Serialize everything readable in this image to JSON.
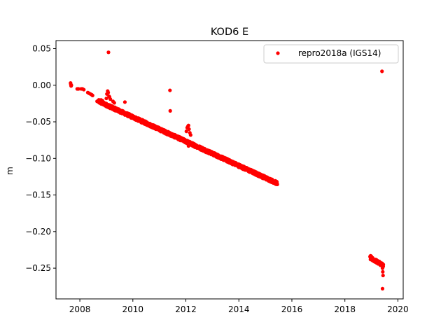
{
  "chart_data": {
    "type": "scatter",
    "title": "KOD6 E",
    "xlabel": "",
    "ylabel": "m",
    "xlim": [
      2007.1,
      2020.2
    ],
    "ylim": [
      -0.292,
      0.061
    ],
    "x_ticks": [
      2008,
      2010,
      2012,
      2014,
      2016,
      2018,
      2020
    ],
    "x_tick_labels": [
      "2008",
      "2010",
      "2012",
      "2014",
      "2016",
      "2018",
      "2020"
    ],
    "y_ticks": [
      0.05,
      0.0,
      -0.05,
      -0.1,
      -0.15,
      -0.2,
      -0.25
    ],
    "y_tick_labels": [
      "0.05",
      "0.00",
      "−0.05",
      "−0.10",
      "−0.15",
      "−0.20",
      "−0.25"
    ],
    "grid": false,
    "legend_position": "top-right",
    "colors": {
      "series": "#ff0000",
      "axes": "#000000"
    },
    "series": [
      {
        "name": "repro2018a (IGS14)",
        "marker": "circle",
        "trend_segments": [
          {
            "x": [
              2008.7,
              2015.45
            ],
            "y": [
              -0.022,
              -0.134
            ],
            "count": 1300,
            "noise": 0.0022
          },
          {
            "x": [
              2018.95,
              2019.45
            ],
            "y": [
              -0.236,
              -0.246
            ],
            "count": 90,
            "noise": 0.0022
          }
        ],
        "points": [
          [
            2007.65,
            0.003
          ],
          [
            2007.66,
            0.001
          ],
          [
            2007.67,
            -0.001
          ],
          [
            2007.68,
            0.0
          ],
          [
            2007.9,
            -0.005
          ],
          [
            2007.95,
            -0.005
          ],
          [
            2008.05,
            -0.005
          ],
          [
            2008.1,
            -0.005
          ],
          [
            2008.15,
            -0.006
          ],
          [
            2008.3,
            -0.01
          ],
          [
            2008.35,
            -0.011
          ],
          [
            2008.4,
            -0.012
          ],
          [
            2008.45,
            -0.013
          ],
          [
            2008.48,
            -0.014
          ],
          [
            2008.65,
            -0.022
          ],
          [
            2008.72,
            -0.02
          ],
          [
            2008.8,
            -0.02
          ],
          [
            2008.85,
            -0.021
          ],
          [
            2009.0,
            -0.018
          ],
          [
            2009.02,
            -0.012
          ],
          [
            2009.05,
            -0.008
          ],
          [
            2009.07,
            -0.01
          ],
          [
            2009.1,
            -0.015
          ],
          [
            2009.12,
            -0.016
          ],
          [
            2009.15,
            -0.019
          ],
          [
            2009.25,
            -0.022
          ],
          [
            2009.3,
            -0.024
          ],
          [
            2009.7,
            -0.023
          ],
          [
            2009.08,
            0.045
          ],
          [
            2011.4,
            -0.007
          ],
          [
            2011.41,
            -0.035
          ],
          [
            2012.02,
            -0.063
          ],
          [
            2012.05,
            -0.058
          ],
          [
            2012.08,
            -0.056
          ],
          [
            2012.1,
            -0.055
          ],
          [
            2012.12,
            -0.06
          ],
          [
            2012.15,
            -0.065
          ],
          [
            2012.18,
            -0.068
          ],
          [
            2012.1,
            -0.083
          ],
          [
            2019.4,
            0.019
          ],
          [
            2018.97,
            -0.233
          ],
          [
            2019.0,
            -0.234
          ],
          [
            2019.05,
            -0.236
          ],
          [
            2019.42,
            -0.25
          ],
          [
            2019.43,
            -0.255
          ],
          [
            2019.44,
            -0.26
          ],
          [
            2019.42,
            -0.278
          ]
        ]
      }
    ]
  }
}
